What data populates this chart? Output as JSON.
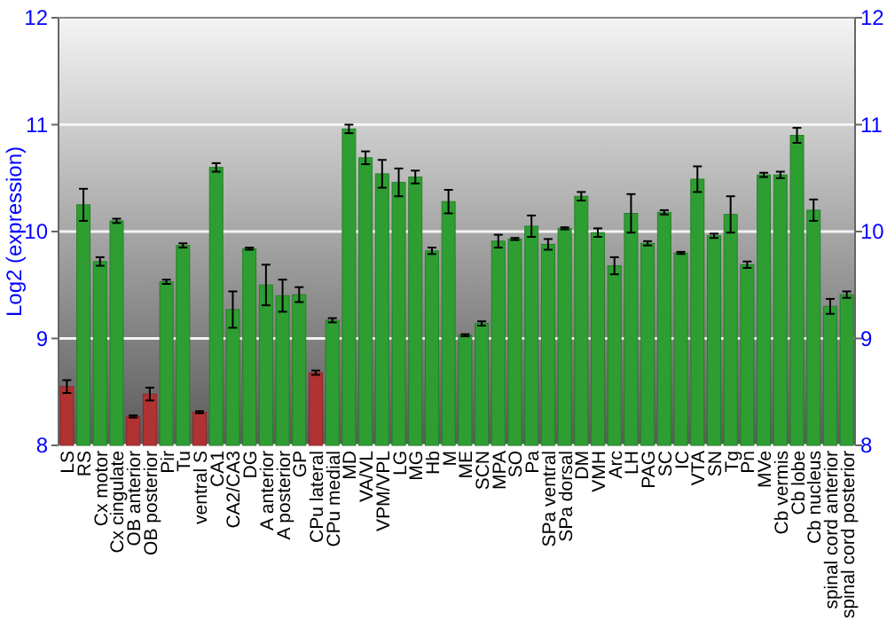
{
  "chart_data": {
    "type": "bar",
    "ylabel": "Log2 (expression)",
    "categories": [
      "LS",
      "RS",
      "Cx motor",
      "Cx cingulate",
      "OB anterior",
      "OB posterior",
      "Pir",
      "Tu",
      "ventral S",
      "CA1",
      "CA2/CA3",
      "DG",
      "A anterior",
      "A posterior",
      "GP",
      "CPu lateral",
      "CPu medial",
      "MD",
      "VA/VL",
      "VPM/VPL",
      "LG",
      "MG",
      "Hb",
      "M",
      "ME",
      "SCN",
      "MPA",
      "SO",
      "Pa",
      "SPa ventral",
      "SPa dorsal",
      "DM",
      "VMH",
      "Arc",
      "LH",
      "PAG",
      "SC",
      "IC",
      "VTA",
      "SN",
      "Tg",
      "Pn",
      "MVe",
      "Cb vermis",
      "Cb lobe",
      "Cb nucleus",
      "spinal cord anterior",
      "spinal cord posterior"
    ],
    "values": [
      8.55,
      10.25,
      9.72,
      10.1,
      8.27,
      8.48,
      9.53,
      9.87,
      8.31,
      10.6,
      9.27,
      9.84,
      9.5,
      9.4,
      9.41,
      8.68,
      9.17,
      10.96,
      10.69,
      10.54,
      10.46,
      10.51,
      9.82,
      10.28,
      9.03,
      9.14,
      9.91,
      9.93,
      10.05,
      9.88,
      10.03,
      10.33,
      9.99,
      9.68,
      10.17,
      9.89,
      10.18,
      9.8,
      10.49,
      9.96,
      10.16,
      9.69,
      10.53,
      10.53,
      10.9,
      10.2,
      9.3,
      9.41
    ],
    "errors": [
      0.06,
      0.15,
      0.04,
      0.02,
      0.01,
      0.06,
      0.02,
      0.02,
      0.01,
      0.04,
      0.17,
      0.01,
      0.19,
      0.15,
      0.07,
      0.02,
      0.02,
      0.04,
      0.06,
      0.13,
      0.13,
      0.06,
      0.03,
      0.11,
      0.01,
      0.02,
      0.06,
      0.01,
      0.1,
      0.05,
      0.01,
      0.04,
      0.04,
      0.08,
      0.18,
      0.02,
      0.02,
      0.01,
      0.12,
      0.02,
      0.17,
      0.03,
      0.02,
      0.03,
      0.07,
      0.1,
      0.07,
      0.03
    ],
    "colors": [
      "#b03232",
      "#2e9e32",
      "#2e9e32",
      "#2e9e32",
      "#b03232",
      "#b03232",
      "#2e9e32",
      "#2e9e32",
      "#b03232",
      "#2e9e32",
      "#2e9e32",
      "#2e9e32",
      "#2e9e32",
      "#2e9e32",
      "#2e9e32",
      "#b03232",
      "#2e9e32",
      "#2e9e32",
      "#2e9e32",
      "#2e9e32",
      "#2e9e32",
      "#2e9e32",
      "#2e9e32",
      "#2e9e32",
      "#2e9e32",
      "#2e9e32",
      "#2e9e32",
      "#2e9e32",
      "#2e9e32",
      "#2e9e32",
      "#2e9e32",
      "#2e9e32",
      "#2e9e32",
      "#2e9e32",
      "#2e9e32",
      "#2e9e32",
      "#2e9e32",
      "#2e9e32",
      "#2e9e32",
      "#2e9e32",
      "#2e9e32",
      "#2e9e32",
      "#2e9e32",
      "#2e9e32",
      "#2e9e32",
      "#2e9e32",
      "#2e9e32",
      "#2e9e32"
    ],
    "ylim": [
      8,
      12
    ],
    "yticks": [
      8,
      9,
      10,
      11,
      12
    ],
    "y2lim": [
      8,
      12
    ],
    "y2ticks": [
      8,
      9,
      10,
      11,
      12
    ],
    "grid": "y"
  }
}
